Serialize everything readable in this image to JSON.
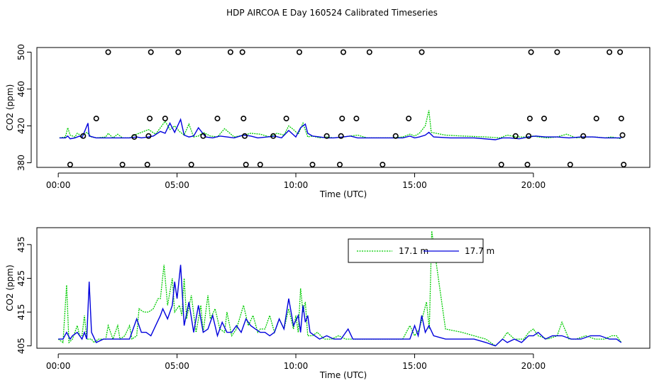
{
  "title": "HDP AIRCOA E  Day 160524  Calibrated Timeseries",
  "colors": {
    "series_green": "#00cc00",
    "series_blue": "#0000dd",
    "axis": "#000000"
  },
  "chart_data": [
    {
      "type": "line",
      "name": "top",
      "xlabel": "Time (UTC)",
      "ylabel": "CO2 (ppm)",
      "xlim": [
        -0.9,
        24.9
      ],
      "ylim": [
        375,
        505
      ],
      "xticks": [
        0,
        5,
        10,
        15,
        20
      ],
      "xtick_labels": [
        "00:00",
        "05:00",
        "10:00",
        "15:00",
        "20:00"
      ],
      "yticks": [
        380,
        420,
        460,
        500
      ],
      "ytick_labels": [
        "380",
        "420",
        "460",
        "500"
      ],
      "series": [
        {
          "name": "17.1 m",
          "color": "#00cc00",
          "x": [
            0.05,
            0.3,
            0.4,
            0.5,
            0.7,
            0.8,
            1.0,
            1.2,
            1.4,
            1.6,
            2.0,
            2.1,
            2.3,
            2.5,
            2.7,
            3.0,
            3.2,
            3.4,
            3.8,
            4.1,
            4.3,
            4.5,
            4.7,
            4.9,
            5.1,
            5.3,
            5.5,
            5.7,
            5.9,
            6.1,
            6.4,
            6.7,
            7.0,
            7.4,
            7.8,
            8.1,
            8.5,
            8.9,
            9.2,
            9.5,
            9.7,
            9.9,
            10.1,
            10.3,
            10.5,
            10.7,
            11.0,
            11.3,
            11.6,
            12.0,
            12.3,
            12.6,
            13.0,
            13.5,
            14.0,
            14.5,
            14.8,
            15.0,
            15.2,
            15.45,
            15.6,
            15.7,
            16.3,
            17.0,
            18.0,
            18.6,
            18.9,
            19.3,
            19.7,
            20.0,
            20.2,
            20.6,
            21.0,
            21.4,
            21.8,
            22.2,
            22.6,
            23.0,
            23.3,
            23.7
          ],
          "y": [
            407,
            408,
            418,
            410,
            408,
            412,
            409,
            413,
            408,
            407,
            408,
            412,
            407,
            411,
            407,
            407,
            410,
            412,
            416,
            411,
            418,
            425,
            416,
            420,
            414,
            410,
            422,
            408,
            409,
            413,
            409,
            408,
            417,
            408,
            410,
            412,
            411,
            408,
            412,
            410,
            420,
            416,
            411,
            423,
            408,
            409,
            407,
            408,
            407,
            408,
            409,
            410,
            407,
            407,
            407,
            408,
            411,
            409,
            412,
            420,
            437,
            413,
            410,
            409,
            408,
            407,
            410,
            408,
            408,
            409,
            408,
            407,
            408,
            411,
            407,
            408,
            408,
            407,
            408,
            406
          ]
        },
        {
          "name": "17.7 m",
          "color": "#0000dd",
          "x": [
            0.05,
            0.3,
            0.4,
            0.5,
            0.7,
            0.9,
            1.0,
            1.25,
            1.3,
            1.6,
            2.0,
            2.5,
            3.0,
            3.3,
            3.5,
            3.8,
            4.0,
            4.3,
            4.5,
            4.7,
            4.9,
            5.15,
            5.3,
            5.5,
            5.7,
            5.9,
            6.2,
            6.5,
            6.8,
            7.1,
            7.4,
            7.8,
            8.1,
            8.4,
            8.8,
            9.1,
            9.4,
            9.7,
            10.0,
            10.2,
            10.4,
            10.5,
            10.7,
            11.0,
            11.3,
            11.6,
            12.0,
            12.3,
            12.6,
            13.0,
            13.5,
            14.0,
            14.5,
            14.8,
            15.0,
            15.2,
            15.45,
            15.6,
            15.8,
            16.5,
            17.5,
            18.4,
            18.7,
            19.0,
            19.4,
            19.8,
            20.1,
            20.5,
            21.0,
            21.5,
            22.0,
            22.5,
            23.0,
            23.5,
            23.7
          ],
          "y": [
            407,
            407,
            409,
            406,
            407,
            409,
            407,
            423,
            409,
            407,
            407,
            407,
            407,
            408,
            407,
            408,
            409,
            414,
            412,
            423,
            413,
            427,
            410,
            408,
            409,
            418,
            408,
            407,
            409,
            408,
            407,
            410,
            409,
            407,
            408,
            409,
            407,
            415,
            408,
            418,
            422,
            412,
            409,
            408,
            407,
            407,
            408,
            409,
            407,
            407,
            407,
            407,
            407,
            409,
            407,
            408,
            410,
            413,
            408,
            407,
            407,
            405,
            407,
            407,
            406,
            408,
            409,
            408,
            408,
            407,
            408,
            408,
            407,
            407,
            407
          ]
        }
      ],
      "markers": [
        {
          "x": 0.5,
          "y": 378
        },
        {
          "x": 1.05,
          "y": 409
        },
        {
          "x": 1.6,
          "y": 428
        },
        {
          "x": 2.1,
          "y": 500
        },
        {
          "x": 2.7,
          "y": 378
        },
        {
          "x": 3.2,
          "y": 408
        },
        {
          "x": 3.75,
          "y": 378
        },
        {
          "x": 3.8,
          "y": 409
        },
        {
          "x": 3.85,
          "y": 428
        },
        {
          "x": 3.9,
          "y": 500
        },
        {
          "x": 4.5,
          "y": 428
        },
        {
          "x": 5.05,
          "y": 500
        },
        {
          "x": 5.6,
          "y": 378
        },
        {
          "x": 6.1,
          "y": 409
        },
        {
          "x": 6.7,
          "y": 428
        },
        {
          "x": 7.25,
          "y": 500
        },
        {
          "x": 7.75,
          "y": 500
        },
        {
          "x": 7.8,
          "y": 428
        },
        {
          "x": 7.85,
          "y": 409
        },
        {
          "x": 7.9,
          "y": 378
        },
        {
          "x": 8.5,
          "y": 378
        },
        {
          "x": 9.05,
          "y": 409
        },
        {
          "x": 9.6,
          "y": 428
        },
        {
          "x": 10.15,
          "y": 500
        },
        {
          "x": 10.7,
          "y": 378
        },
        {
          "x": 11.3,
          "y": 409
        },
        {
          "x": 11.85,
          "y": 378
        },
        {
          "x": 11.9,
          "y": 409
        },
        {
          "x": 11.95,
          "y": 428
        },
        {
          "x": 12.0,
          "y": 500
        },
        {
          "x": 12.55,
          "y": 428
        },
        {
          "x": 13.1,
          "y": 500
        },
        {
          "x": 13.65,
          "y": 378
        },
        {
          "x": 14.2,
          "y": 409
        },
        {
          "x": 14.75,
          "y": 428
        },
        {
          "x": 15.3,
          "y": 500
        },
        {
          "x": 18.65,
          "y": 378
        },
        {
          "x": 19.25,
          "y": 409
        },
        {
          "x": 19.75,
          "y": 378
        },
        {
          "x": 19.8,
          "y": 409
        },
        {
          "x": 19.85,
          "y": 428
        },
        {
          "x": 19.9,
          "y": 500
        },
        {
          "x": 20.45,
          "y": 428
        },
        {
          "x": 21.0,
          "y": 500
        },
        {
          "x": 21.55,
          "y": 378
        },
        {
          "x": 22.1,
          "y": 409
        },
        {
          "x": 22.65,
          "y": 428
        },
        {
          "x": 23.2,
          "y": 500
        },
        {
          "x": 23.65,
          "y": 500
        },
        {
          "x": 23.7,
          "y": 428
        },
        {
          "x": 23.75,
          "y": 410
        },
        {
          "x": 23.8,
          "y": 378
        }
      ]
    },
    {
      "type": "line",
      "name": "bottom",
      "xlabel": "Time (UTC)",
      "ylabel": "CO2 (ppm)",
      "xlim": [
        -0.9,
        24.9
      ],
      "ylim": [
        404.3,
        440
      ],
      "xticks": [
        0,
        5,
        10,
        15,
        20
      ],
      "xtick_labels": [
        "00:00",
        "05:00",
        "10:00",
        "15:00",
        "20:00"
      ],
      "yticks": [
        405,
        415,
        425,
        435
      ],
      "ytick_labels": [
        "405",
        "415",
        "425",
        "435"
      ],
      "legend": {
        "placement": "top-center",
        "entries": [
          "17.1 m",
          "17.7 m"
        ]
      },
      "series": [
        {
          "name": "17.1 m",
          "color": "#00cc00",
          "x": [
            0,
            0.2,
            0.35,
            0.45,
            0.6,
            0.8,
            0.9,
            1.0,
            1.1,
            1.2,
            1.4,
            1.5,
            1.7,
            2.0,
            2.1,
            2.3,
            2.5,
            2.6,
            2.8,
            3.0,
            3.1,
            3.3,
            3.4,
            3.6,
            3.8,
            4.0,
            4.2,
            4.3,
            4.45,
            4.6,
            4.8,
            4.9,
            5.1,
            5.2,
            5.3,
            5.4,
            5.6,
            5.8,
            6.0,
            6.1,
            6.3,
            6.4,
            6.6,
            6.8,
            7.0,
            7.1,
            7.3,
            7.5,
            7.8,
            8.0,
            8.2,
            8.4,
            8.5,
            8.7,
            8.9,
            9.1,
            9.3,
            9.5,
            9.7,
            9.9,
            10.0,
            10.1,
            10.2,
            10.3,
            10.4,
            10.5,
            10.7,
            10.9,
            11.2,
            11.5,
            11.8,
            12.1,
            12.4,
            12.7,
            13.0,
            13.5,
            14.0,
            14.5,
            14.8,
            15.0,
            15.2,
            15.35,
            15.5,
            15.62,
            15.72,
            16.3,
            17.0,
            17.5,
            18.0,
            18.4,
            18.7,
            18.9,
            19.2,
            19.6,
            19.8,
            20.0,
            20.2,
            20.6,
            21.0,
            21.2,
            21.5,
            21.8,
            22.2,
            22.6,
            23.0,
            23.3,
            23.5,
            23.7
          ],
          "y": [
            407,
            406,
            423,
            406,
            407,
            411,
            408,
            408,
            414,
            407,
            407,
            406,
            407,
            407,
            411,
            407,
            411,
            407,
            408,
            411,
            407,
            408,
            416,
            415,
            415,
            416,
            419,
            419,
            429,
            417,
            425,
            415,
            417,
            414,
            425,
            413,
            420,
            409,
            417,
            409,
            420,
            413,
            416,
            410,
            409,
            415,
            408,
            410,
            417,
            411,
            414,
            409,
            410,
            410,
            414,
            409,
            413,
            410,
            416,
            410,
            414,
            409,
            422,
            415,
            418,
            408,
            408,
            409,
            407,
            407,
            408,
            407,
            407,
            407,
            407,
            407,
            407,
            407,
            411,
            408,
            410,
            414,
            418,
            410,
            439,
            410,
            409,
            408,
            407,
            405,
            407,
            409,
            407,
            407,
            409,
            410,
            408,
            407,
            408,
            412,
            407,
            407,
            408,
            407,
            407,
            408,
            408,
            406
          ]
        },
        {
          "name": "17.7 m",
          "color": "#0000dd",
          "x": [
            0,
            0.2,
            0.35,
            0.5,
            0.6,
            0.8,
            1.0,
            1.1,
            1.2,
            1.3,
            1.4,
            1.6,
            1.9,
            2.2,
            2.6,
            3.0,
            3.3,
            3.5,
            3.7,
            3.9,
            4.1,
            4.3,
            4.4,
            4.6,
            4.8,
            4.9,
            5.0,
            5.15,
            5.3,
            5.5,
            5.7,
            5.9,
            6.1,
            6.3,
            6.5,
            6.7,
            6.9,
            7.1,
            7.3,
            7.5,
            7.7,
            7.9,
            8.1,
            8.3,
            8.5,
            8.7,
            8.9,
            9.1,
            9.3,
            9.5,
            9.7,
            9.9,
            10.1,
            10.2,
            10.3,
            10.4,
            10.5,
            10.6,
            10.8,
            11.0,
            11.3,
            11.6,
            11.9,
            12.2,
            12.4,
            12.6,
            13.0,
            13.5,
            14.0,
            14.5,
            14.8,
            15.0,
            15.15,
            15.3,
            15.45,
            15.6,
            15.8,
            16.3,
            17.0,
            17.5,
            18.0,
            18.4,
            18.7,
            18.9,
            19.2,
            19.5,
            19.8,
            20.0,
            20.2,
            20.5,
            20.8,
            21.2,
            21.6,
            22.0,
            22.4,
            22.8,
            23.2,
            23.5,
            23.7
          ],
          "y": [
            407,
            407,
            409,
            407,
            408,
            409,
            407,
            409,
            407,
            424,
            409,
            406,
            407,
            407,
            407,
            407,
            413,
            409,
            409,
            408,
            411,
            414,
            416,
            413,
            417,
            424,
            419,
            429,
            411,
            418,
            409,
            417,
            409,
            410,
            414,
            408,
            412,
            409,
            409,
            411,
            409,
            413,
            411,
            410,
            409,
            409,
            408,
            409,
            413,
            410,
            419,
            411,
            414,
            409,
            417,
            412,
            414,
            409,
            408,
            407,
            408,
            407,
            407,
            410,
            407,
            407,
            407,
            407,
            407,
            407,
            407,
            411,
            408,
            414,
            409,
            411,
            408,
            407,
            407,
            407,
            406,
            405,
            407,
            406,
            407,
            406,
            408,
            408,
            409,
            407,
            408,
            408,
            407,
            407,
            408,
            408,
            407,
            407,
            406
          ]
        }
      ]
    }
  ]
}
